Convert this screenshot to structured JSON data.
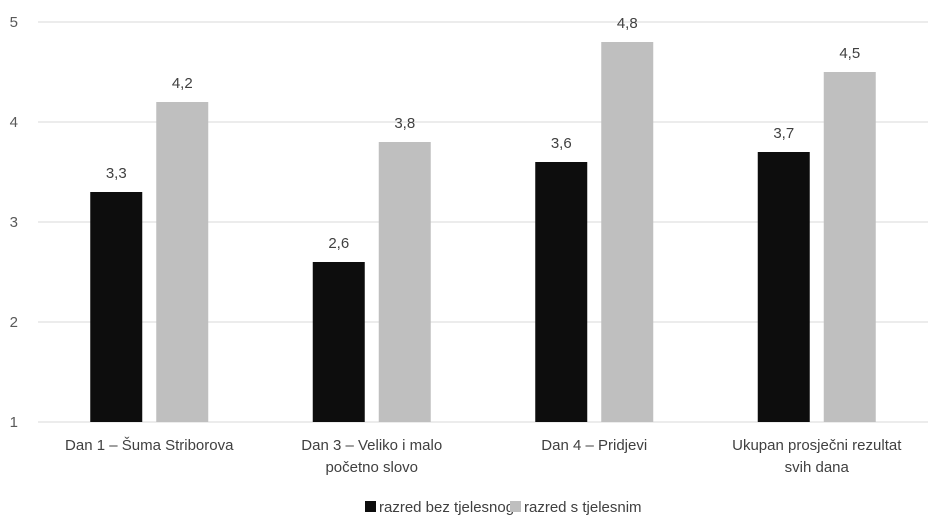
{
  "chart_data": {
    "type": "bar",
    "categories": [
      [
        "Dan 1 – Šuma Striborova"
      ],
      [
        "Dan 3 – Veliko i malo",
        "početno slovo"
      ],
      [
        "Dan 4 – Pridjevi"
      ],
      [
        "Ukupan prosječni rezultat",
        "svih dana"
      ]
    ],
    "series": [
      {
        "name": "razred bez tjelesnog",
        "values": [
          3.3,
          2.6,
          3.6,
          3.7
        ],
        "labels": [
          "3,3",
          "2,6",
          "3,6",
          "3,7"
        ],
        "color": "#0d0d0d"
      },
      {
        "name": "razred s tjelesnim",
        "values": [
          4.2,
          3.8,
          4.8,
          4.5
        ],
        "labels": [
          "4,2",
          "3,8",
          "4,8",
          "4,5"
        ],
        "color": "#bfbfbf"
      }
    ],
    "ylim": [
      1,
      5
    ],
    "yticks": [
      "1",
      "2",
      "3",
      "4",
      "5"
    ],
    "grid": true,
    "legend_position": "bottom",
    "gridline_color": "#d9d9d9"
  }
}
